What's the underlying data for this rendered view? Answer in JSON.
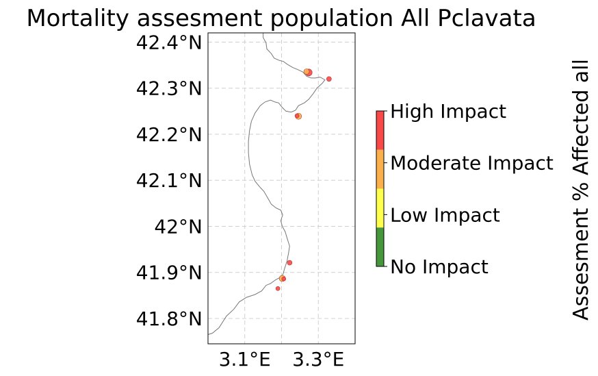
{
  "title": "Mortality assesment population All Pclavata",
  "map": {
    "lon_range": [
      3.0,
      3.4
    ],
    "lat_range": [
      41.745,
      42.42
    ],
    "lat_ticks": [
      {
        "value": 42.4,
        "label": "42.4°N"
      },
      {
        "value": 42.3,
        "label": "42.3°N"
      },
      {
        "value": 42.2,
        "label": "42.2°N"
      },
      {
        "value": 42.1,
        "label": "42.1°N"
      },
      {
        "value": 42.0,
        "label": "42°N"
      },
      {
        "value": 41.9,
        "label": "41.9°N"
      },
      {
        "value": 41.8,
        "label": "41.8°N"
      }
    ],
    "lon_ticks": [
      {
        "value": 3.1,
        "label": "3.1°E"
      },
      {
        "value": 3.3,
        "label": "3.3°E"
      }
    ],
    "lon_gridlines": [
      3.1,
      3.2,
      3.3,
      3.4
    ],
    "grid": true,
    "gridline_color": "#d0d0d0",
    "coastline_color": "#777777",
    "coastline": [
      [
        3.15,
        42.42
      ],
      [
        3.15,
        42.41
      ],
      [
        3.158,
        42.398
      ],
      [
        3.16,
        42.385
      ],
      [
        3.172,
        42.375
      ],
      [
        3.18,
        42.365
      ],
      [
        3.195,
        42.36
      ],
      [
        3.205,
        42.358
      ],
      [
        3.215,
        42.352
      ],
      [
        3.23,
        42.345
      ],
      [
        3.245,
        42.34
      ],
      [
        3.258,
        42.335
      ],
      [
        3.268,
        42.326
      ],
      [
        3.28,
        42.322
      ],
      [
        3.292,
        42.322
      ],
      [
        3.305,
        42.324
      ],
      [
        3.318,
        42.318
      ],
      [
        3.31,
        42.31
      ],
      [
        3.296,
        42.3
      ],
      [
        3.286,
        42.288
      ],
      [
        3.274,
        42.276
      ],
      [
        3.262,
        42.268
      ],
      [
        3.246,
        42.262
      ],
      [
        3.238,
        42.252
      ],
      [
        3.226,
        42.248
      ],
      [
        3.212,
        42.25
      ],
      [
        3.202,
        42.258
      ],
      [
        3.192,
        42.268
      ],
      [
        3.182,
        42.27
      ],
      [
        3.17,
        42.274
      ],
      [
        3.155,
        42.27
      ],
      [
        3.142,
        42.262
      ],
      [
        3.128,
        42.246
      ],
      [
        3.118,
        42.228
      ],
      [
        3.113,
        42.208
      ],
      [
        3.11,
        42.185
      ],
      [
        3.11,
        42.16
      ],
      [
        3.113,
        42.135
      ],
      [
        3.12,
        42.112
      ],
      [
        3.128,
        42.098
      ],
      [
        3.14,
        42.086
      ],
      [
        3.152,
        42.076
      ],
      [
        3.162,
        42.062
      ],
      [
        3.172,
        42.048
      ],
      [
        3.185,
        42.04
      ],
      [
        3.198,
        42.035
      ],
      [
        3.203,
        42.025
      ],
      [
        3.198,
        42.012
      ],
      [
        3.202,
        42.0
      ],
      [
        3.21,
        41.988
      ],
      [
        3.216,
        41.972
      ],
      [
        3.222,
        41.957
      ],
      [
        3.219,
        41.942
      ],
      [
        3.215,
        41.925
      ],
      [
        3.208,
        41.908
      ],
      [
        3.204,
        41.896
      ],
      [
        3.196,
        41.889
      ],
      [
        3.184,
        41.884
      ],
      [
        3.17,
        41.876
      ],
      [
        3.158,
        41.872
      ],
      [
        3.146,
        41.86
      ],
      [
        3.128,
        41.852
      ],
      [
        3.105,
        41.846
      ],
      [
        3.085,
        41.836
      ],
      [
        3.07,
        41.82
      ],
      [
        3.05,
        41.805
      ],
      [
        3.03,
        41.78
      ],
      [
        3.012,
        41.768
      ],
      [
        3.0,
        41.765
      ]
    ],
    "sites": [
      {
        "lon": 3.274,
        "lat": 42.334,
        "category": "High Impact",
        "size": 5
      },
      {
        "lon": 3.268,
        "lat": 42.336,
        "category": "Moderate Impact",
        "size": 4
      },
      {
        "lon": 3.329,
        "lat": 42.32,
        "category": "High Impact",
        "size": 3.5
      },
      {
        "lon": 3.246,
        "lat": 42.239,
        "category": "Moderate Impact",
        "size": 4.5
      },
      {
        "lon": 3.242,
        "lat": 42.24,
        "category": "High Impact",
        "size": 3
      },
      {
        "lon": 3.222,
        "lat": 41.921,
        "category": "High Impact",
        "size": 3.5
      },
      {
        "lon": 3.202,
        "lat": 41.887,
        "category": "Moderate Impact",
        "size": 4.5
      },
      {
        "lon": 3.206,
        "lat": 41.886,
        "category": "High Impact",
        "size": 3
      },
      {
        "lon": 3.19,
        "lat": 41.865,
        "category": "High Impact",
        "size": 3
      }
    ]
  },
  "colorbar": {
    "label": "Assesment % Affected all",
    "categories": [
      {
        "label": "High Impact",
        "color": "#f84848"
      },
      {
        "label": "Moderate Impact",
        "color": "#fbb04c"
      },
      {
        "label": "Low Impact",
        "color": "#ffff4d"
      },
      {
        "label": "No Impact",
        "color": "#46963c"
      }
    ]
  }
}
